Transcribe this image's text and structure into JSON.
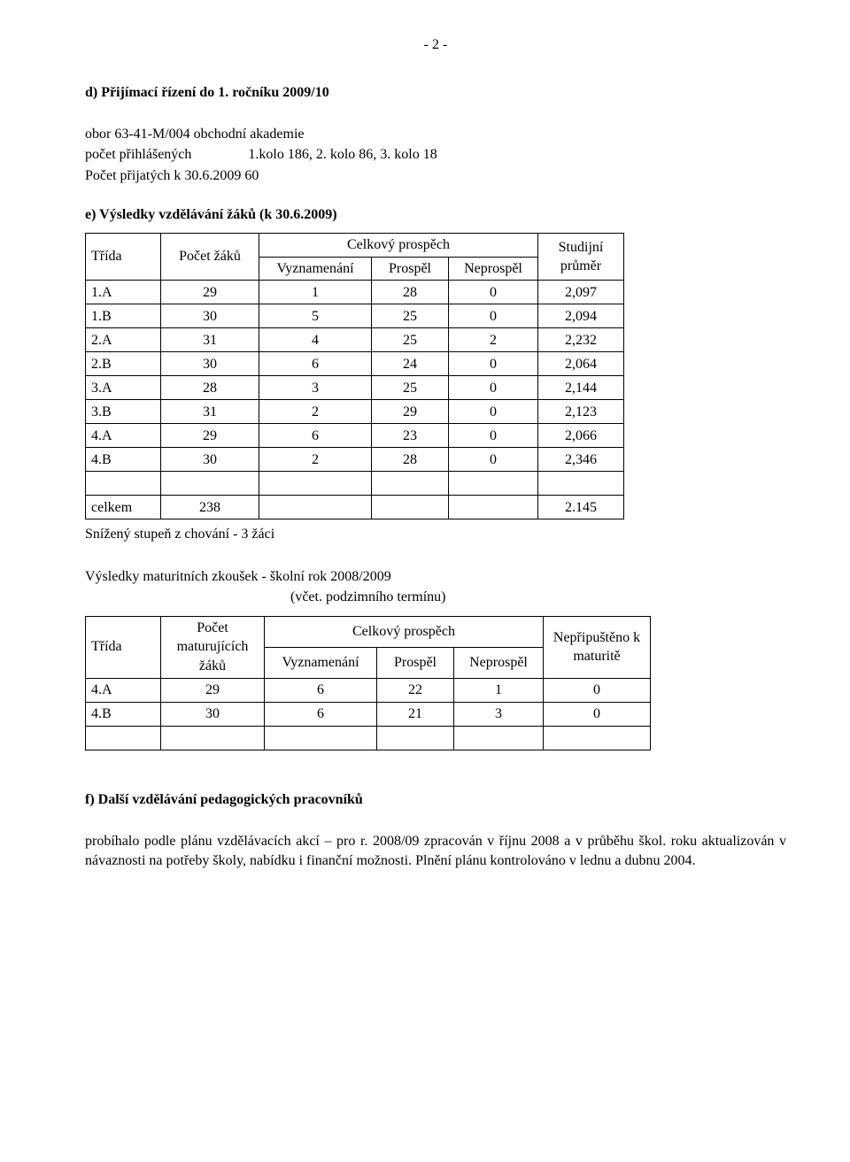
{
  "page_number_text": "- 2 -",
  "section_d": {
    "heading": "d) Přijímací řízení do 1. ročníku 2009/10",
    "line1": "obor 63-41-M/004 obchodní akademie",
    "line2_left": "počet přihlášených",
    "line2_right": "1.kolo 186, 2. kolo 86, 3. kolo 18",
    "line3": "Počet přijatých k 30.6.2009      60"
  },
  "section_e": {
    "heading": "e) Výsledky vzdělávání žáků (k 30.6.2009)",
    "table1": {
      "col_trida": "Třída",
      "col_pocet": "Počet žáků",
      "col_celkovy": "Celkový prospěch",
      "col_vyznamenani": "Vyznamenání",
      "col_prospel": "Prospěl",
      "col_neprospel": "Neprospěl",
      "col_prumer": "Studijní průměr",
      "rows": [
        {
          "trida": "1.A",
          "pocet": "29",
          "v": "1",
          "p": "28",
          "n": "0",
          "avg": "2,097"
        },
        {
          "trida": "1.B",
          "pocet": "30",
          "v": "5",
          "p": "25",
          "n": "0",
          "avg": "2,094"
        },
        {
          "trida": "2.A",
          "pocet": "31",
          "v": "4",
          "p": "25",
          "n": "2",
          "avg": "2,232"
        },
        {
          "trida": "2.B",
          "pocet": "30",
          "v": "6",
          "p": "24",
          "n": "0",
          "avg": "2,064"
        },
        {
          "trida": "3.A",
          "pocet": "28",
          "v": "3",
          "p": "25",
          "n": "0",
          "avg": "2,144"
        },
        {
          "trida": "3.B",
          "pocet": "31",
          "v": "2",
          "p": "29",
          "n": "0",
          "avg": "2,123"
        },
        {
          "trida": "4.A",
          "pocet": "29",
          "v": "6",
          "p": "23",
          "n": "0",
          "avg": "2,066"
        },
        {
          "trida": "4.B",
          "pocet": "30",
          "v": "2",
          "p": "28",
          "n": "0",
          "avg": "2,346"
        }
      ],
      "total_label": "celkem",
      "total_pocet": "238",
      "total_avg": "2.145"
    },
    "after_t1": "Snížený stupeň z chování  - 3 žáci",
    "mat_heading": "Výsledky maturitních zkoušek   - školní rok  2008/2009",
    "mat_sub": "(včet. podzimního termínu)",
    "table2": {
      "col_trida": "Třída",
      "col_pocet": "Počet maturujících žáků",
      "col_celkovy": "Celkový prospěch",
      "col_vyznamenani": "Vyznamenání",
      "col_prospel": "Prospěl",
      "col_neprospel": "Neprospěl",
      "col_nepripusteno": "Nepřipuštěno k maturitě",
      "rows": [
        {
          "trida": "4.A",
          "pocet": "29",
          "v": "6",
          "p": "22",
          "n": "1",
          "np": "0"
        },
        {
          "trida": "4.B",
          "pocet": "30",
          "v": "6",
          "p": "21",
          "n": "3",
          "np": "0"
        }
      ]
    }
  },
  "section_f": {
    "heading": "f) Další vzdělávání pedagogických pracovníků",
    "body": "probíhalo podle plánu vzdělávacích akcí – pro r. 2008/09 zpracován v říjnu 2008 a v průběhu škol. roku aktualizován v návaznosti na potřeby školy, nabídku i finanční možnosti. Plnění plánu kontrolováno v lednu a dubnu 2004."
  }
}
